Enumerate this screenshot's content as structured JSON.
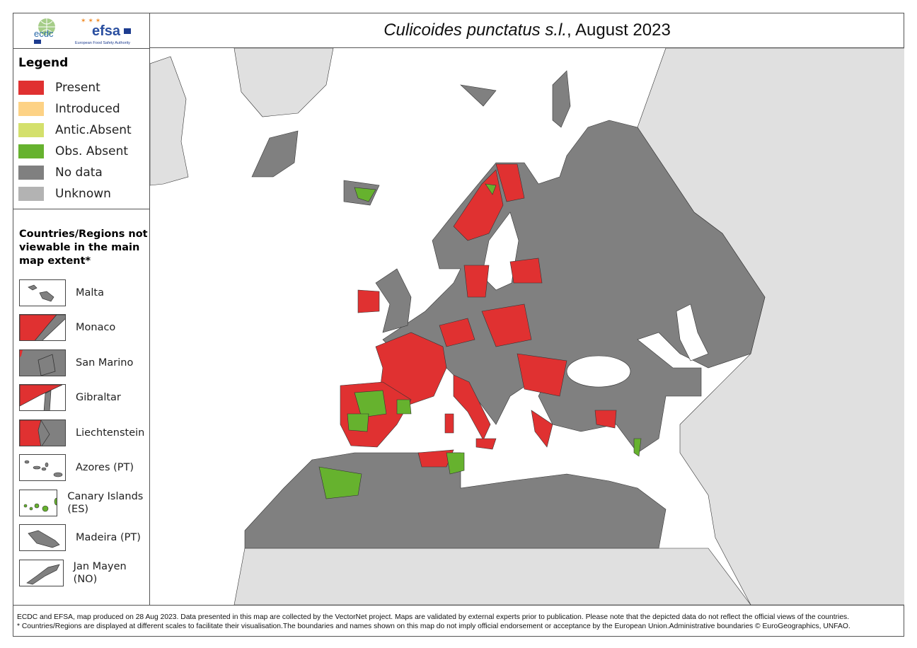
{
  "header": {
    "title_italic": "Culicoides punctatus s.l.",
    "title_rest": ", August 2023"
  },
  "logos": {
    "ecdc": "ecdc",
    "efsa": "efsa",
    "efsa_sub": "European Food Safety Authority"
  },
  "legend": {
    "heading": "Legend",
    "items": [
      {
        "label": "Present",
        "color": "#e03131"
      },
      {
        "label": "Introduced",
        "color": "#fdd285"
      },
      {
        "label": "Antic.Absent",
        "color": "#d4e06c"
      },
      {
        "label": "Obs. Absent",
        "color": "#66b22e"
      },
      {
        "label": "No data",
        "color": "#808080"
      },
      {
        "label": "Unknown",
        "color": "#b3b3b3"
      }
    ]
  },
  "insets": {
    "heading": "Countries/Regions not viewable in the main map extent*",
    "items": [
      {
        "label": "Malta",
        "status": "No data"
      },
      {
        "label": "Monaco",
        "status": "Present"
      },
      {
        "label": "San Marino",
        "status": "No data"
      },
      {
        "label": "Gibraltar",
        "status": "Present"
      },
      {
        "label": "Liechtenstein",
        "status": "Present"
      },
      {
        "label": "Azores (PT)",
        "status": "No data"
      },
      {
        "label": "Canary Islands (ES)",
        "status": "Obs. Absent"
      },
      {
        "label": "Madeira (PT)",
        "status": "No data"
      },
      {
        "label": "Jan Mayen (NO)",
        "status": "No data"
      }
    ]
  },
  "colors": {
    "water": "#ffffff",
    "outside": "#e0e0e0",
    "border": "#333333"
  },
  "footer": {
    "line1": "ECDC and EFSA, map produced on 28 Aug 2023. Data presented in this map are collected by the VectorNet project. Maps are validated by external experts prior to publication. Please note that the depicted data do not reflect the official views of the countries.",
    "line2": "* Countries/Regions are displayed at different scales to facilitate their visualisation.The boundaries and names shown on this map do not imply official endorsement or acceptance by the European Union.Administrative boundaries © EuroGeographics, UNFAO."
  }
}
